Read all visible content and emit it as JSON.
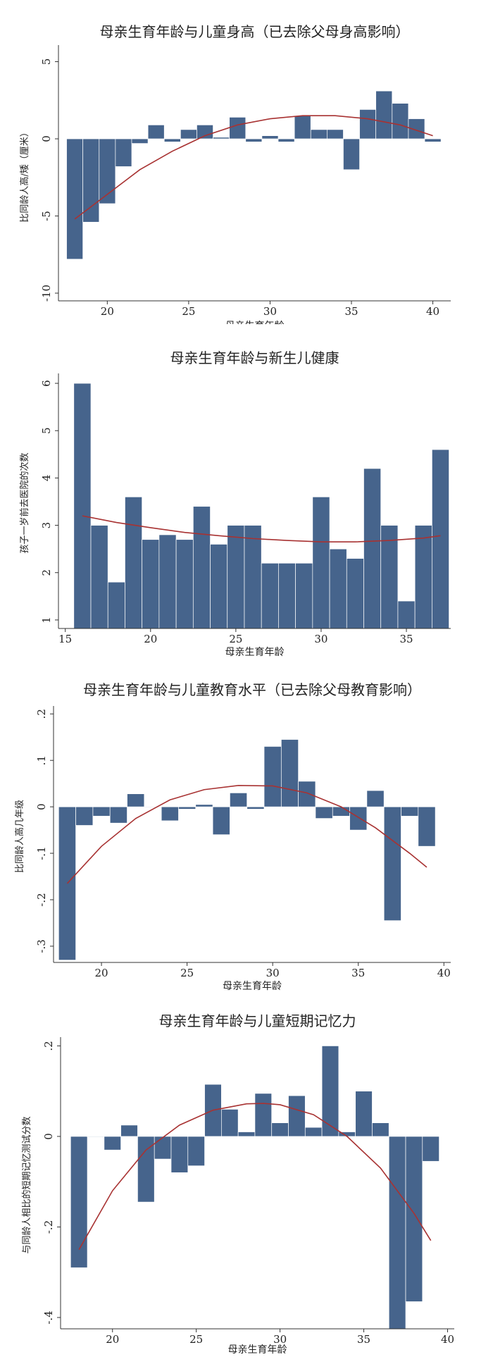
{
  "chart_data": [
    {
      "type": "bar",
      "title": "母亲生育年龄与儿童身高（已去除父母身高影响）",
      "xlabel": "母亲生育年龄",
      "ylabel": "比同龄人高/矮（厘米）",
      "xlim": [
        17,
        41.1
      ],
      "ylim": [
        -10.5,
        5.8
      ],
      "xticks": [
        20,
        25,
        30,
        35,
        40
      ],
      "yticks": [
        -10,
        -5,
        0,
        5
      ],
      "yticklabels": [
        "-10",
        "-5",
        "0",
        "5"
      ],
      "bar_width": 1,
      "x": [
        18,
        19,
        20,
        21,
        22,
        23,
        24,
        25,
        26,
        27,
        28,
        29,
        30,
        31,
        32,
        33,
        34,
        35,
        36,
        37,
        38,
        39,
        40
      ],
      "values": [
        -7.8,
        -5.4,
        -4.2,
        -1.8,
        -0.3,
        0.9,
        -0.2,
        0.6,
        0.9,
        0.1,
        1.4,
        -0.2,
        0.2,
        -0.2,
        1.5,
        0.6,
        0.6,
        -2.0,
        1.9,
        3.1,
        2.3,
        1.3,
        -0.2
      ],
      "fit_line": {
        "x": [
          18,
          20,
          22,
          24,
          26,
          28,
          30,
          32,
          34,
          36,
          38,
          40
        ],
        "y": [
          -5.2,
          -3.6,
          -2.0,
          -0.8,
          0.2,
          0.9,
          1.3,
          1.5,
          1.5,
          1.3,
          0.9,
          0.2
        ]
      },
      "bar_color": "#46648c",
      "line_color": "#a83232",
      "grid": false
    },
    {
      "type": "bar",
      "title": "母亲生育年龄与新生儿健康",
      "xlabel": "母亲生育年龄",
      "ylabel": "孩子一岁前去医院的次数",
      "xlim": [
        14.6,
        37.6
      ],
      "ylim": [
        0.82,
        6.12
      ],
      "xticks": [
        15,
        20,
        25,
        30,
        35
      ],
      "yticks": [
        1,
        2,
        3,
        4,
        5,
        6
      ],
      "yticklabels": [
        "1",
        "2",
        "3",
        "4",
        "5",
        "6"
      ],
      "bar_width": 1,
      "x": [
        16,
        17,
        18,
        19,
        20,
        21,
        22,
        23,
        24,
        25,
        26,
        27,
        28,
        29,
        30,
        31,
        32,
        33,
        34,
        35,
        36,
        37
      ],
      "values": [
        6.0,
        3.0,
        1.8,
        3.6,
        2.7,
        2.8,
        2.7,
        3.4,
        2.6,
        3.0,
        3.0,
        2.2,
        2.2,
        2.2,
        3.6,
        2.5,
        2.3,
        4.2,
        3.0,
        1.4,
        3.0,
        4.6
      ],
      "fit_line": {
        "x": [
          16,
          18,
          20,
          22,
          24,
          26,
          28,
          30,
          32,
          34,
          36,
          37
        ],
        "y": [
          3.2,
          3.06,
          2.95,
          2.85,
          2.78,
          2.72,
          2.68,
          2.65,
          2.65,
          2.68,
          2.73,
          2.78
        ]
      },
      "bar_color": "#46648c",
      "line_color": "#a83232",
      "grid": false
    },
    {
      "type": "bar",
      "title": "母亲生育年龄与儿童教育水平（已去除父母教育影响）",
      "xlabel": "母亲生育年龄",
      "ylabel": "比同龄人高几年级",
      "xlim": [
        17.2,
        40.4
      ],
      "ylim": [
        -0.335,
        0.208
      ],
      "xticks": [
        20,
        25,
        30,
        35,
        40
      ],
      "yticks": [
        -0.3,
        -0.2,
        -0.1,
        0,
        0.1,
        0.2
      ],
      "yticklabels": [
        "-.3",
        "-.2",
        "-.1",
        "0",
        ".1",
        ".2"
      ],
      "bar_width": 1,
      "x": [
        18,
        19,
        20,
        21,
        22,
        23,
        24,
        25,
        26,
        27,
        28,
        29,
        30,
        31,
        32,
        33,
        34,
        35,
        36,
        37,
        38,
        39
      ],
      "values": [
        -0.33,
        -0.04,
        -0.02,
        -0.035,
        0.028,
        0.0,
        -0.03,
        -0.005,
        0.005,
        -0.06,
        0.03,
        -0.005,
        0.13,
        0.145,
        0.055,
        -0.025,
        -0.02,
        -0.05,
        0.035,
        -0.245,
        -0.02,
        -0.085
      ],
      "fit_line": {
        "x": [
          18,
          20,
          22,
          24,
          26,
          28,
          30,
          32,
          34,
          36,
          38,
          39
        ],
        "y": [
          -0.165,
          -0.085,
          -0.025,
          0.015,
          0.037,
          0.046,
          0.045,
          0.03,
          0.0,
          -0.045,
          -0.1,
          -0.13
        ]
      },
      "bar_color": "#46648c",
      "line_color": "#a83232",
      "grid": false
    },
    {
      "type": "bar",
      "title": "母亲生育年龄与儿童短期记忆力",
      "xlabel": "母亲生育年龄",
      "ylabel": "与同龄人相比的短期记忆测试分数",
      "xlim": [
        16.9,
        40.4
      ],
      "ylim": [
        -0.425,
        0.21
      ],
      "xticks": [
        20,
        25,
        30,
        35,
        40
      ],
      "yticks": [
        -0.4,
        -0.2,
        0,
        0.2
      ],
      "yticklabels": [
        "-.4",
        "-.2",
        "0",
        ".2"
      ],
      "bar_width": 1,
      "x": [
        18,
        19,
        20,
        21,
        22,
        23,
        24,
        25,
        26,
        27,
        28,
        29,
        30,
        31,
        32,
        33,
        34,
        35,
        36,
        37,
        38,
        39
      ],
      "values": [
        -0.29,
        0.0,
        -0.03,
        0.025,
        -0.145,
        -0.05,
        -0.08,
        -0.065,
        0.115,
        0.06,
        0.01,
        0.095,
        0.03,
        0.09,
        0.02,
        0.2,
        0.01,
        0.1,
        0.03,
        -0.425,
        -0.365,
        -0.055
      ],
      "fit_line": {
        "x": [
          18,
          20,
          22,
          24,
          26,
          28,
          29,
          30,
          32,
          34,
          36,
          38,
          39
        ],
        "y": [
          -0.25,
          -0.12,
          -0.03,
          0.025,
          0.058,
          0.072,
          0.073,
          0.07,
          0.048,
          0.0,
          -0.07,
          -0.17,
          -0.23
        ]
      },
      "bar_color": "#46648c",
      "line_color": "#a83232",
      "grid": false
    }
  ]
}
